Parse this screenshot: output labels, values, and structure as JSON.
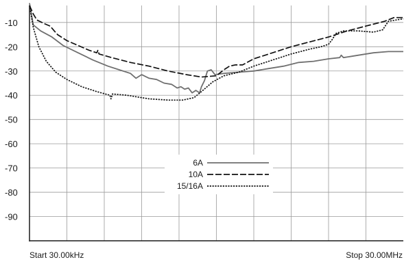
{
  "chart_data": {
    "type": "line",
    "y_ticks": [
      -10,
      -20,
      -30,
      -40,
      -50,
      -60,
      -70,
      -80,
      -90
    ],
    "ylim": [
      -100,
      -3
    ],
    "xlim": [
      0,
      1
    ],
    "x_start_label": "Start 30.00kHz",
    "x_stop_label": "Stop 30.00MHz",
    "grid": true,
    "legend_placement": "center",
    "series": [
      {
        "name": "6A",
        "color": "#6f6f6f",
        "style": "solid",
        "points": [
          [
            0.0,
            -2
          ],
          [
            0.01,
            -11
          ],
          [
            0.03,
            -13.5
          ],
          [
            0.06,
            -16
          ],
          [
            0.09,
            -19.5
          ],
          [
            0.13,
            -22.5
          ],
          [
            0.17,
            -25.5
          ],
          [
            0.21,
            -28
          ],
          [
            0.24,
            -29.5
          ],
          [
            0.27,
            -31
          ],
          [
            0.285,
            -33
          ],
          [
            0.3,
            -31.5
          ],
          [
            0.32,
            -33
          ],
          [
            0.34,
            -33.5
          ],
          [
            0.36,
            -35
          ],
          [
            0.38,
            -35.5
          ],
          [
            0.395,
            -37
          ],
          [
            0.405,
            -36.5
          ],
          [
            0.415,
            -37.5
          ],
          [
            0.425,
            -37
          ],
          [
            0.435,
            -39
          ],
          [
            0.445,
            -38
          ],
          [
            0.455,
            -39
          ],
          [
            0.46,
            -36.5
          ],
          [
            0.468,
            -34
          ],
          [
            0.476,
            -30
          ],
          [
            0.486,
            -29.5
          ],
          [
            0.496,
            -31.5
          ],
          [
            0.52,
            -31
          ],
          [
            0.56,
            -30.5
          ],
          [
            0.6,
            -30
          ],
          [
            0.64,
            -29
          ],
          [
            0.68,
            -28
          ],
          [
            0.72,
            -26.5
          ],
          [
            0.76,
            -26
          ],
          [
            0.8,
            -25
          ],
          [
            0.83,
            -24.5
          ],
          [
            0.834,
            -23.5
          ],
          [
            0.84,
            -24.5
          ],
          [
            0.88,
            -23.5
          ],
          [
            0.92,
            -22.5
          ],
          [
            0.96,
            -22
          ],
          [
            1.0,
            -22
          ]
        ]
      },
      {
        "name": "10A",
        "color": "#111111",
        "style": "long-dash",
        "points": [
          [
            0.0,
            -3
          ],
          [
            0.01,
            -6.5
          ],
          [
            0.02,
            -9
          ],
          [
            0.04,
            -10.5
          ],
          [
            0.055,
            -11.5
          ],
          [
            0.075,
            -15
          ],
          [
            0.1,
            -17.5
          ],
          [
            0.13,
            -19.5
          ],
          [
            0.16,
            -21.5
          ],
          [
            0.18,
            -22.5
          ],
          [
            0.183,
            -21.5
          ],
          [
            0.186,
            -23
          ],
          [
            0.22,
            -24.5
          ],
          [
            0.27,
            -26.5
          ],
          [
            0.32,
            -28
          ],
          [
            0.37,
            -30
          ],
          [
            0.42,
            -31.5
          ],
          [
            0.46,
            -32.5
          ],
          [
            0.5,
            -32
          ],
          [
            0.52,
            -29.5
          ],
          [
            0.535,
            -28
          ],
          [
            0.55,
            -27.5
          ],
          [
            0.57,
            -27.5
          ],
          [
            0.6,
            -25
          ],
          [
            0.65,
            -22.5
          ],
          [
            0.7,
            -20
          ],
          [
            0.75,
            -18
          ],
          [
            0.8,
            -16
          ],
          [
            0.85,
            -13.5
          ],
          [
            0.9,
            -11.5
          ],
          [
            0.95,
            -9.5
          ],
          [
            0.975,
            -8
          ],
          [
            1.0,
            -8
          ]
        ]
      },
      {
        "name": "15/16A",
        "color": "#111111",
        "style": "dotted",
        "points": [
          [
            0.0,
            -3
          ],
          [
            0.01,
            -12
          ],
          [
            0.025,
            -20
          ],
          [
            0.045,
            -26
          ],
          [
            0.07,
            -30.5
          ],
          [
            0.1,
            -33.5
          ],
          [
            0.14,
            -36.5
          ],
          [
            0.18,
            -38.5
          ],
          [
            0.215,
            -40
          ],
          [
            0.218,
            -41.5
          ],
          [
            0.222,
            -39.5
          ],
          [
            0.26,
            -40
          ],
          [
            0.32,
            -41.5
          ],
          [
            0.37,
            -42
          ],
          [
            0.41,
            -42
          ],
          [
            0.44,
            -41
          ],
          [
            0.46,
            -38.5
          ],
          [
            0.49,
            -34.5
          ],
          [
            0.52,
            -32
          ],
          [
            0.56,
            -30.5
          ],
          [
            0.6,
            -28
          ],
          [
            0.65,
            -25.5
          ],
          [
            0.7,
            -23
          ],
          [
            0.75,
            -21
          ],
          [
            0.78,
            -20
          ],
          [
            0.8,
            -19
          ],
          [
            0.81,
            -17
          ],
          [
            0.82,
            -14.5
          ],
          [
            0.84,
            -13.5
          ],
          [
            0.88,
            -13.5
          ],
          [
            0.92,
            -14
          ],
          [
            0.945,
            -13
          ],
          [
            0.96,
            -9.5
          ],
          [
            0.98,
            -9
          ],
          [
            1.0,
            -8.5
          ]
        ]
      }
    ]
  }
}
